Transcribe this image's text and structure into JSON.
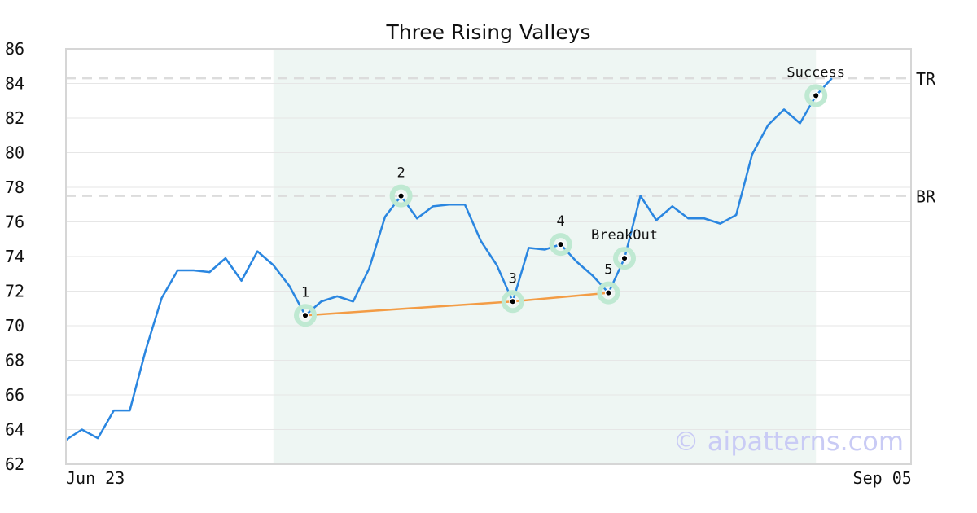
{
  "chart_data": {
    "type": "line",
    "title": "Three Rising Valleys",
    "xlabel": "",
    "ylabel": "",
    "x_tick_labels": [
      {
        "index": 0,
        "label": "Jun 23"
      },
      {
        "index": 53,
        "label": "Sep 05"
      }
    ],
    "ylim": [
      62,
      86
    ],
    "y_ticks": [
      62,
      64,
      66,
      68,
      70,
      72,
      74,
      76,
      78,
      80,
      82,
      84,
      86
    ],
    "grid": true,
    "series": [
      {
        "color": "#2a86e0",
        "values": [
          63.4,
          64.0,
          63.5,
          65.1,
          65.1,
          68.6,
          71.6,
          73.2,
          73.2,
          73.1,
          73.9,
          72.6,
          74.3,
          73.5,
          72.3,
          70.6,
          71.4,
          71.7,
          71.4,
          73.3,
          76.3,
          77.5,
          76.2,
          76.9,
          77.0,
          77.0,
          74.9,
          73.5,
          71.4,
          74.5,
          74.4,
          74.7,
          73.7,
          72.9,
          71.9,
          73.9,
          77.5,
          76.1,
          76.9,
          76.2,
          76.2,
          75.9,
          76.4,
          79.9,
          81.6,
          82.5,
          81.7,
          83.3,
          84.3
        ]
      }
    ],
    "shaded_range": {
      "from_index": 13,
      "to_index": 47,
      "color": "#eef6f3"
    },
    "horizontal_lines": [
      {
        "label": "TR",
        "value": 84.3
      },
      {
        "label": "BR",
        "value": 77.5
      }
    ],
    "trend_line": {
      "color": "#f39c45",
      "points": [
        [
          15,
          70.6
        ],
        [
          28,
          71.4
        ],
        [
          34,
          71.9
        ]
      ]
    },
    "marked_points": [
      {
        "label": "1",
        "index": 15,
        "value": 70.6,
        "label_pos": "above"
      },
      {
        "label": "2",
        "index": 21,
        "value": 77.5,
        "label_pos": "above"
      },
      {
        "label": "3",
        "index": 28,
        "value": 71.4,
        "label_pos": "above"
      },
      {
        "label": "4",
        "index": 31,
        "value": 74.7,
        "label_pos": "above"
      },
      {
        "label": "5",
        "index": 34,
        "value": 71.9,
        "label_pos": "above"
      },
      {
        "label": "BreakOut",
        "index": 35,
        "value": 73.9,
        "label_pos": "above"
      },
      {
        "label": "Success",
        "index": 47,
        "value": 83.3,
        "label_pos": "above"
      }
    ],
    "marker_halo_color": "#bfe9d2",
    "watermark": "© aipatterns.com",
    "watermark_color": "#c9cbf5"
  }
}
